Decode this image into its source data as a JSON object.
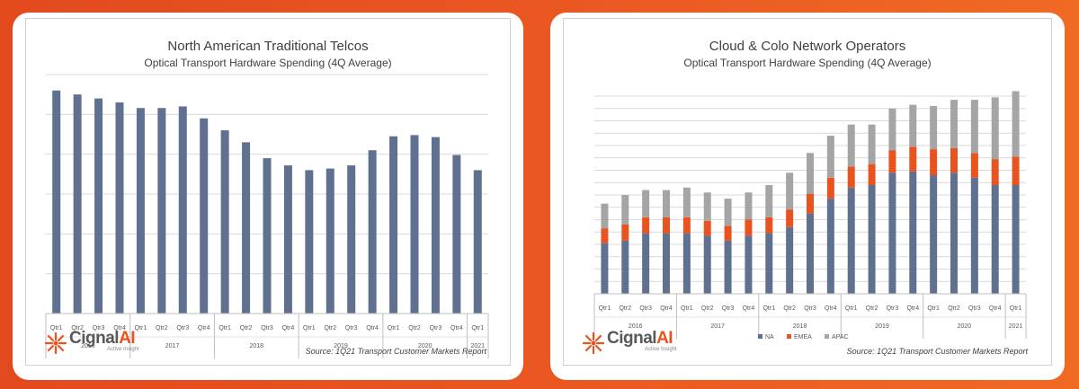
{
  "chart_data": [
    {
      "type": "bar",
      "title": "North American Traditional Telcos",
      "subtitle": "Optical Transport Hardware Spending (4Q Average)",
      "categories": [
        "Qtr1",
        "Qtr2",
        "Qtr3",
        "Qtr4",
        "Qtr1",
        "Qtr2",
        "Qtr3",
        "Qtr4",
        "Qtr1",
        "Qtr2",
        "Qtr3",
        "Qtr4",
        "Qtr1",
        "Qtr2",
        "Qtr3",
        "Qtr4",
        "Qtr1",
        "Qtr2",
        "Qtr3",
        "Qtr4",
        "Qtr1"
      ],
      "year_groups": [
        {
          "label": "2016",
          "count": 4
        },
        {
          "label": "2017",
          "count": 4
        },
        {
          "label": "2018",
          "count": 4
        },
        {
          "label": "2019",
          "count": 4
        },
        {
          "label": "2020",
          "count": 4
        },
        {
          "label": "2021",
          "count": 1
        }
      ],
      "values": [
        5.6,
        5.5,
        5.4,
        5.3,
        5.16,
        5.16,
        5.2,
        4.9,
        4.6,
        4.3,
        3.9,
        3.72,
        3.6,
        3.64,
        3.72,
        4.1,
        4.45,
        4.48,
        4.43,
        3.98,
        3.6
      ],
      "ylim": [
        0,
        6
      ],
      "y_gridlines": 6,
      "y_tick_labels_shown": false,
      "colors": {
        "bar": "#5f7090"
      },
      "source": "Source: 1Q21 Transport Customer Markets Report"
    },
    {
      "type": "bar",
      "stacked": true,
      "title": "Cloud & Colo Network Operators",
      "subtitle": "Optical Transport Hardware Spending (4Q Average)",
      "categories": [
        "Qtr1",
        "Qtr2",
        "Qtr3",
        "Qtr4",
        "Qtr1",
        "Qtr2",
        "Qtr3",
        "Qtr4",
        "Qtr1",
        "Qtr2",
        "Qtr3",
        "Qtr4",
        "Qtr1",
        "Qtr2",
        "Qtr3",
        "Qtr4",
        "Qtr1",
        "Qtr2",
        "Qtr3",
        "Qtr4",
        "Qtr1"
      ],
      "year_groups": [
        {
          "label": "2016",
          "count": 4
        },
        {
          "label": "2017",
          "count": 4
        },
        {
          "label": "2018",
          "count": 4
        },
        {
          "label": "2019",
          "count": 4
        },
        {
          "label": "2020",
          "count": 4
        },
        {
          "label": "2021",
          "count": 1
        }
      ],
      "series": [
        {
          "name": "NA",
          "color": "#5f7090",
          "values": [
            4.1,
            4.3,
            4.9,
            4.9,
            4.9,
            4.7,
            4.3,
            4.7,
            4.9,
            5.4,
            6.5,
            7.7,
            8.6,
            8.8,
            9.8,
            9.9,
            9.6,
            9.8,
            9.4,
            8.8,
            8.8
          ]
        },
        {
          "name": "EMEA",
          "color": "#e8531f",
          "values": [
            1.2,
            1.3,
            1.3,
            1.3,
            1.3,
            1.2,
            1.2,
            1.3,
            1.3,
            1.4,
            1.6,
            1.7,
            1.7,
            1.7,
            1.8,
            2.0,
            2.1,
            2.0,
            2.0,
            2.1,
            2.3
          ]
        },
        {
          "name": "APAC",
          "color": "#a5a5a5",
          "values": [
            2.0,
            2.4,
            2.2,
            2.2,
            2.4,
            2.3,
            2.2,
            2.2,
            2.6,
            3.0,
            3.3,
            3.4,
            3.4,
            3.2,
            3.4,
            3.4,
            3.5,
            3.9,
            4.3,
            5.0,
            5.3
          ]
        }
      ],
      "ylim": [
        0,
        16
      ],
      "y_gridlines": 16,
      "y_tick_labels_shown": false,
      "legend_position": "bottom",
      "source": "Source: 1Q21 Transport Customer Markets Report"
    }
  ],
  "brand": {
    "name_main": "Cignal",
    "name_accent": "AI",
    "tagline": "Active Insight",
    "color_accent": "#e8531f",
    "color_text": "#58595b",
    "icon": "starburst-logo-icon"
  }
}
